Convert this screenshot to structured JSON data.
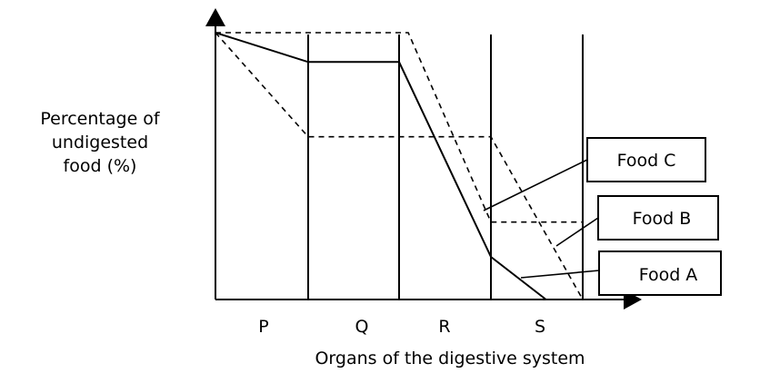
{
  "chart_data": {
    "type": "line",
    "ylabel_lines": [
      "Percentage of",
      "undigested",
      "food (%)"
    ],
    "xlabel": "Organs of the digestive system",
    "categories": [
      "P",
      "Q",
      "R",
      "S"
    ],
    "series": [
      {
        "name": "Food A",
        "style": "solid",
        "x": [
          0,
          1,
          2,
          3,
          3.6
        ],
        "y": [
          100,
          89,
          89,
          16,
          0
        ]
      },
      {
        "name": "Food B",
        "style": "dashed",
        "x": [
          0,
          1,
          3,
          4
        ],
        "y": [
          100,
          61,
          61,
          0
        ]
      },
      {
        "name": "Food C",
        "style": "dashed",
        "x": [
          0,
          2.1,
          3,
          4
        ],
        "y": [
          100,
          100,
          29,
          29
        ]
      }
    ],
    "ylim": [
      0,
      100
    ],
    "grid": false,
    "colors": {
      "line": "#000000",
      "background": "#ffffff"
    }
  }
}
